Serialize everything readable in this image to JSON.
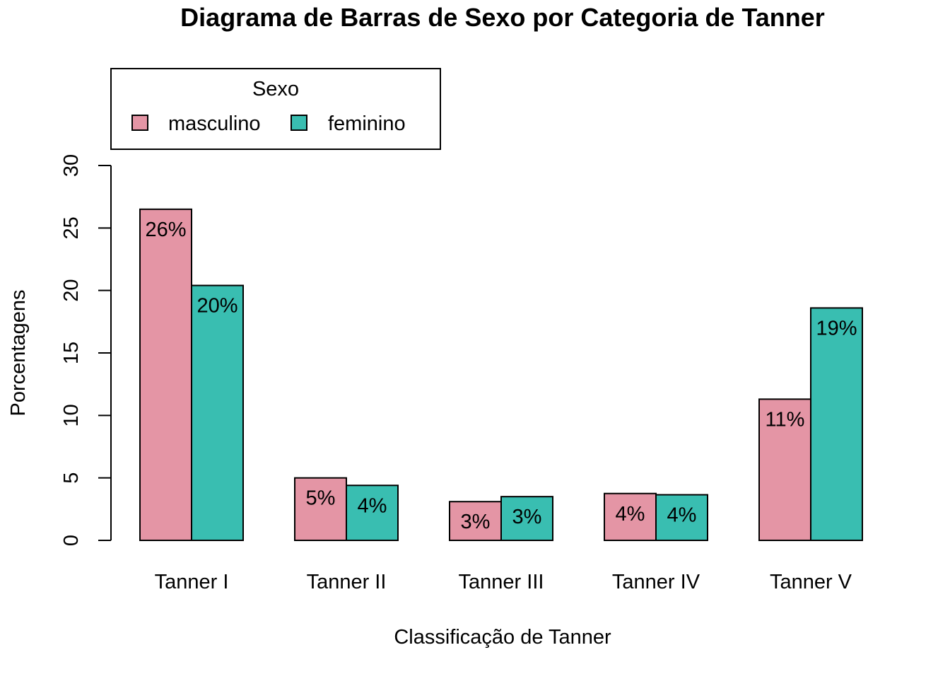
{
  "chart_data": {
    "type": "bar",
    "title": "Diagrama de Barras de Sexo por Categoria de Tanner",
    "xlabel": "Classificação de Tanner",
    "ylabel": "Porcentagens",
    "categories": [
      "Tanner I",
      "Tanner II",
      "Tanner III",
      "Tanner IV",
      "Tanner V"
    ],
    "series": [
      {
        "name": "masculino",
        "color": "#E495A5",
        "values": [
          26.5,
          5.0,
          3.1,
          3.75,
          11.3
        ],
        "labels": [
          "26%",
          "5%",
          "3%",
          "4%",
          "11%"
        ]
      },
      {
        "name": "feminino",
        "color": "#39BEB1",
        "values": [
          20.4,
          4.4,
          3.5,
          3.65,
          18.6
        ],
        "labels": [
          "20%",
          "4%",
          "3%",
          "4%",
          "19%"
        ]
      }
    ],
    "ylim": [
      0,
      30
    ],
    "yticks": [
      "0",
      "5",
      "10",
      "15",
      "20",
      "25",
      "30"
    ],
    "legend": {
      "title": "Sexo",
      "placement": "top-left"
    },
    "grid": false
  }
}
